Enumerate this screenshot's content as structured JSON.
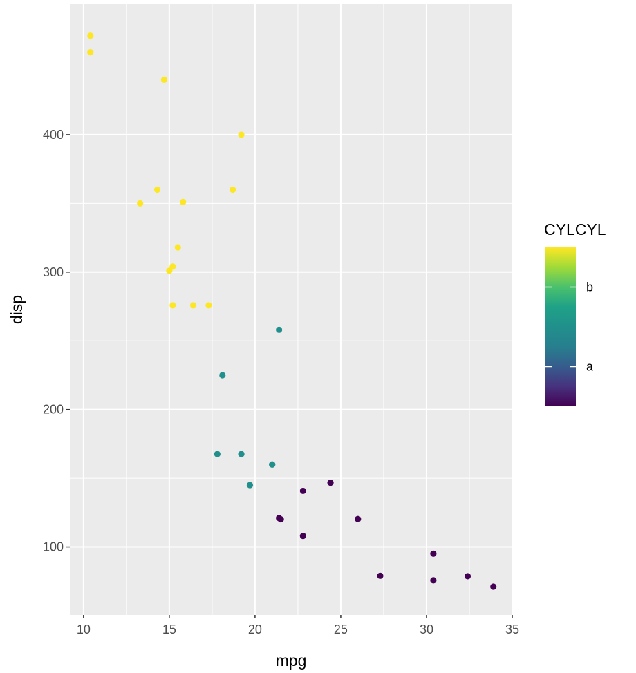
{
  "chart_data": {
    "type": "scatter",
    "xlabel": "mpg",
    "ylabel": "disp",
    "xlim": [
      9.2,
      35
    ],
    "ylim": [
      50.5,
      495
    ],
    "x_ticks": [
      10,
      15,
      20,
      25,
      30,
      35
    ],
    "y_ticks": [
      100,
      200,
      300,
      400
    ],
    "x_tick_labels": [
      "10",
      "15",
      "20",
      "25",
      "30",
      "35"
    ],
    "y_tick_labels": [
      "100",
      "200",
      "300",
      "400"
    ],
    "grid": true,
    "legend": {
      "title": "CYLCYL",
      "placement": "right",
      "type": "colorbar",
      "colormap": "viridis",
      "range": [
        4,
        8
      ],
      "breaks": [
        5,
        7
      ],
      "labels": [
        "a",
        "b"
      ]
    },
    "series": [
      {
        "cyl": 4,
        "color": "#440154",
        "points": [
          {
            "x": 22.8,
            "y": 108
          },
          {
            "x": 24.4,
            "y": 146.7
          },
          {
            "x": 22.8,
            "y": 140.8
          },
          {
            "x": 32.4,
            "y": 78.7
          },
          {
            "x": 30.4,
            "y": 75.7
          },
          {
            "x": 33.9,
            "y": 71.1
          },
          {
            "x": 21.5,
            "y": 120.1
          },
          {
            "x": 27.3,
            "y": 79
          },
          {
            "x": 26,
            "y": 120.3
          },
          {
            "x": 30.4,
            "y": 95.1
          },
          {
            "x": 21.4,
            "y": 121
          }
        ]
      },
      {
        "cyl": 6,
        "color": "#21908C",
        "points": [
          {
            "x": 21,
            "y": 160
          },
          {
            "x": 21,
            "y": 160
          },
          {
            "x": 21.4,
            "y": 258
          },
          {
            "x": 18.1,
            "y": 225
          },
          {
            "x": 19.2,
            "y": 167.6
          },
          {
            "x": 17.8,
            "y": 167.6
          },
          {
            "x": 19.7,
            "y": 145
          }
        ]
      },
      {
        "cyl": 8,
        "color": "#FDE725",
        "points": [
          {
            "x": 18.7,
            "y": 360
          },
          {
            "x": 14.3,
            "y": 360
          },
          {
            "x": 16.4,
            "y": 275.8
          },
          {
            "x": 17.3,
            "y": 275.8
          },
          {
            "x": 15.2,
            "y": 275.8
          },
          {
            "x": 10.4,
            "y": 472
          },
          {
            "x": 10.4,
            "y": 460
          },
          {
            "x": 14.7,
            "y": 440
          },
          {
            "x": 15.5,
            "y": 318
          },
          {
            "x": 15.2,
            "y": 304
          },
          {
            "x": 13.3,
            "y": 350
          },
          {
            "x": 19.2,
            "y": 400
          },
          {
            "x": 15.8,
            "y": 351
          },
          {
            "x": 15,
            "y": 301
          }
        ]
      }
    ]
  }
}
